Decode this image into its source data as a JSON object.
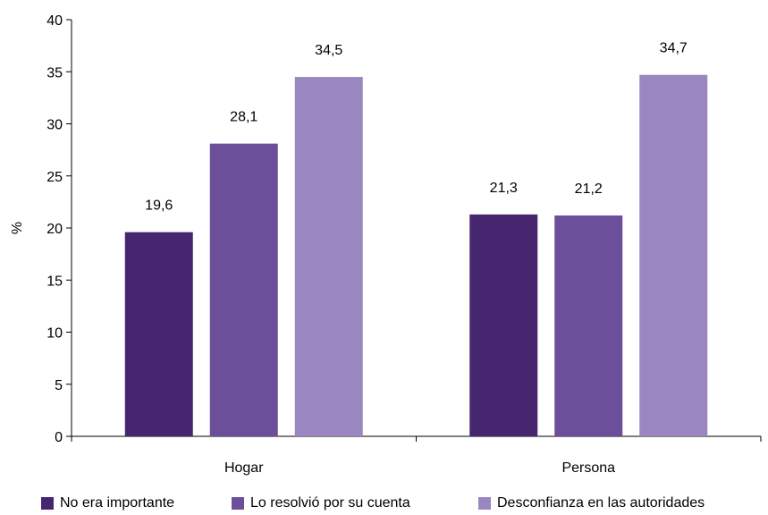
{
  "chart_data": {
    "type": "bar",
    "title": "",
    "xlabel": "",
    "ylabel": "%",
    "ylim": [
      0,
      40
    ],
    "yticks": [
      "0",
      "5",
      "10",
      "15",
      "20",
      "25",
      "30",
      "35",
      "40"
    ],
    "categories": [
      "Hogar",
      "Persona"
    ],
    "series": [
      {
        "name": "No era importante",
        "color": "#46266e",
        "values": [
          19.6,
          21.3
        ],
        "labels": [
          "19,6",
          "21,3"
        ]
      },
      {
        "name": "Lo resolvió por su cuenta",
        "color": "#6c4f9b",
        "values": [
          28.1,
          21.2
        ],
        "labels": [
          "28,1",
          "21,2"
        ]
      },
      {
        "name": "Desconfianza en las autoridades",
        "color": "#9a87c0",
        "values": [
          34.5,
          34.7
        ],
        "labels": [
          "34,5",
          "34,7"
        ]
      }
    ],
    "grid": false,
    "legend": "bottom"
  }
}
